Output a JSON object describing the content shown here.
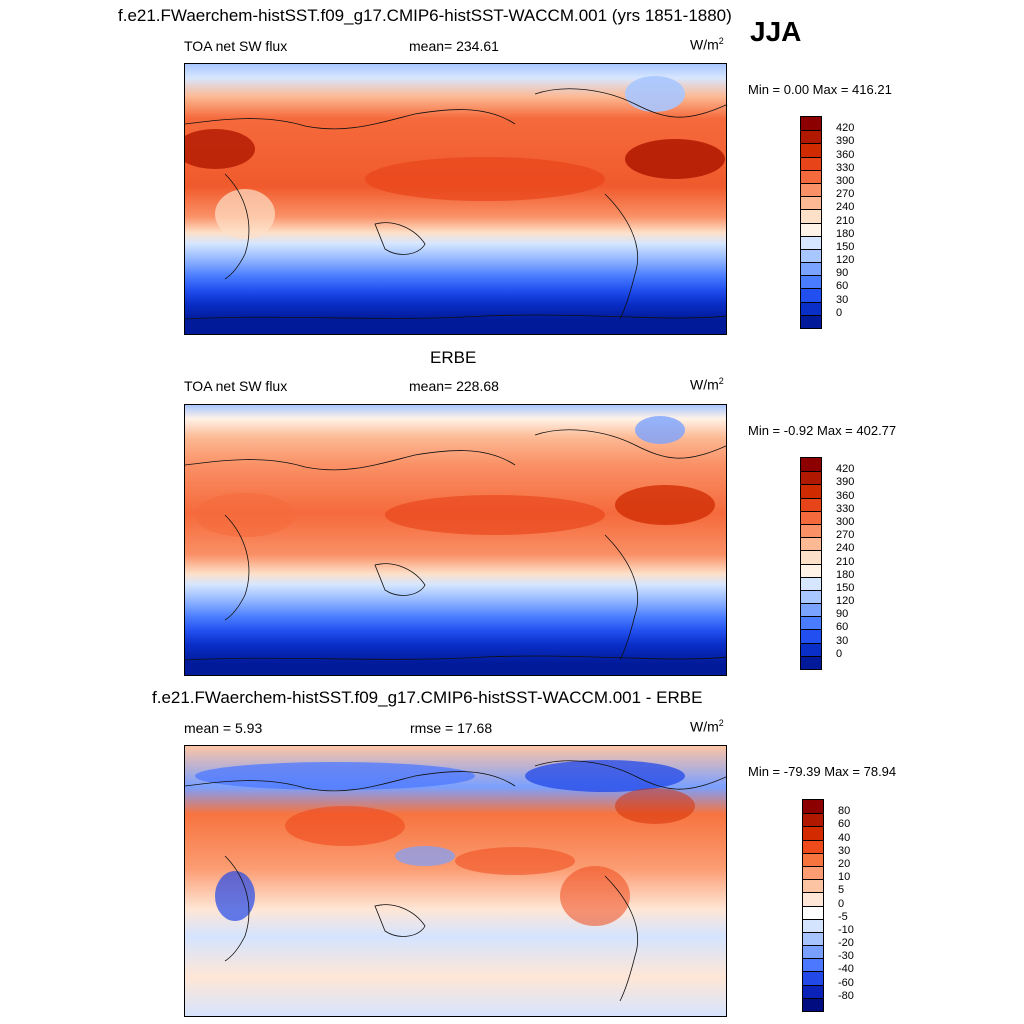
{
  "header": {
    "title": "f.e21.FWaerchem-histSST.f09_g17.CMIP6-histSST-WACCM.001 (yrs 1851-1880)",
    "season": "JJA"
  },
  "panels": [
    {
      "id": "model",
      "panel_title": "",
      "left_label": "TOA net SW flux",
      "center_label": "mean= 234.61",
      "units_base": "W/m",
      "units_sup": "2",
      "minmax": "Min =   0.00 Max = 416.21",
      "colorbar": {
        "labels": [
          "420",
          "390",
          "360",
          "330",
          "300",
          "270",
          "240",
          "210",
          "180",
          "150",
          "120",
          "90",
          "60",
          "30",
          "0"
        ],
        "colors": [
          "#8c0000",
          "#b01800",
          "#cf2a00",
          "#e8441a",
          "#f56a3c",
          "#fa9066",
          "#fcb994",
          "#fde0c8",
          "#fff3e8",
          "#d6e6ff",
          "#a8c6ff",
          "#7aa3ff",
          "#4a7cff",
          "#2250f0",
          "#0a2fc8",
          "#001a9a"
        ]
      }
    },
    {
      "id": "obs",
      "panel_title": "ERBE",
      "left_label": "TOA net SW flux",
      "center_label": "mean= 228.68",
      "units_base": "W/m",
      "units_sup": "2",
      "minmax": "Min =  -0.92 Max = 402.77",
      "colorbar": {
        "labels": [
          "420",
          "390",
          "360",
          "330",
          "300",
          "270",
          "240",
          "210",
          "180",
          "150",
          "120",
          "90",
          "60",
          "30",
          "0"
        ],
        "colors": [
          "#8c0000",
          "#b01800",
          "#cf2a00",
          "#e8441a",
          "#f56a3c",
          "#fa9066",
          "#fcb994",
          "#fde0c8",
          "#fff3e8",
          "#d6e6ff",
          "#a8c6ff",
          "#7aa3ff",
          "#4a7cff",
          "#2250f0",
          "#0a2fc8",
          "#001a9a"
        ]
      }
    },
    {
      "id": "diff",
      "panel_title": "f.e21.FWaerchem-histSST.f09_g17.CMIP6-histSST-WACCM.001 - ERBE",
      "left_label": "mean =   5.93",
      "center_label": "rmse =  17.68",
      "units_base": "W/m",
      "units_sup": "2",
      "minmax": "Min = -79.39 Max =  78.94",
      "colorbar": {
        "labels": [
          "80",
          "60",
          "40",
          "30",
          "20",
          "10",
          "5",
          "0",
          "-5",
          "-10",
          "-20",
          "-30",
          "-40",
          "-60",
          "-80"
        ],
        "colors": [
          "#8c0000",
          "#b01800",
          "#d42a00",
          "#ee4a1c",
          "#f7743f",
          "#fb9c72",
          "#fdc4a4",
          "#ffe6d6",
          "#ffffff",
          "#d4e4ff",
          "#a8c4ff",
          "#7aa0ff",
          "#4c78ff",
          "#2248e8",
          "#0a22b8",
          "#000c80"
        ]
      }
    }
  ]
}
